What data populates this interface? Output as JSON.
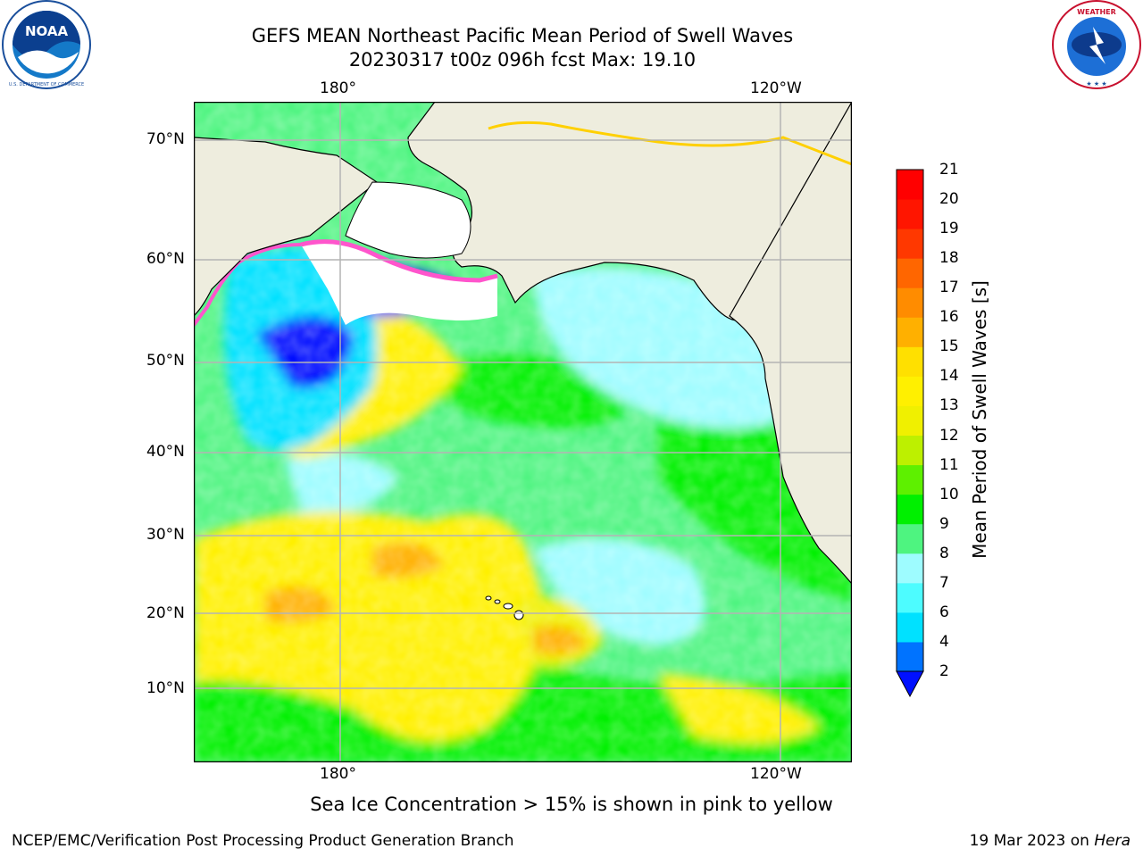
{
  "title": {
    "line1": "GEFS MEAN Northeast Pacific Mean Period of Swell Waves",
    "line2": "20230317 t00z 096h fcst   Max: 19.10"
  },
  "logos": {
    "left": "NOAA",
    "right": "NATIONAL WEATHER SERVICE"
  },
  "map": {
    "projection": "lat-lon",
    "lon_labels_top": [
      "180°",
      "120°W"
    ],
    "lon_labels_bottom": [
      "180°",
      "120°W"
    ],
    "lat_labels": [
      "70°N",
      "60°N",
      "50°N",
      "40°N",
      "30°N",
      "20°N",
      "10°N"
    ],
    "grid": true,
    "land_color": "#eeedde",
    "ice_color": "#ffffff",
    "ice_edge_colors": [
      "#ff55cc",
      "#ffd000"
    ]
  },
  "colorbar": {
    "label": "Mean Period of Swell Waves [s]",
    "ticks": [
      "2",
      "4",
      "6",
      "7",
      "8",
      "9",
      "10",
      "11",
      "12",
      "13",
      "14",
      "15",
      "16",
      "17",
      "18",
      "19",
      "20",
      "21"
    ],
    "colors": [
      "#0073ff",
      "#00e1ff",
      "#4dfcff",
      "#9efcff",
      "#4ef480",
      "#00f000",
      "#5ef000",
      "#bdf000",
      "#f0f000",
      "#fff000",
      "#ffe000",
      "#ffb000",
      "#ff8c00",
      "#ff6600",
      "#ff3800",
      "#ff1500",
      "#ff0000"
    ],
    "extend_min_color": "#0010ff"
  },
  "chart_data": {
    "type": "heatmap",
    "title": "GEFS MEAN Northeast Pacific Mean Period of Swell Waves",
    "subtitle": "20230317 t00z 096h fcst   Max: 19.10",
    "variable": "Mean Period of Swell Waves [s]",
    "max": 19.1,
    "colorbar_range": [
      2,
      21
    ],
    "x_ticks": [
      "180°",
      "120°W"
    ],
    "y_ticks": [
      "70°N",
      "60°N",
      "50°N",
      "40°N",
      "30°N",
      "20°N",
      "10°N"
    ]
  },
  "footer": {
    "note": "Sea Ice Concentration > 15% is shown in pink to yellow",
    "left": "NCEP/EMC/Verification Post Processing Product Generation Branch",
    "right_prefix": "19 Mar 2023 on ",
    "right_italic": "Hera"
  }
}
